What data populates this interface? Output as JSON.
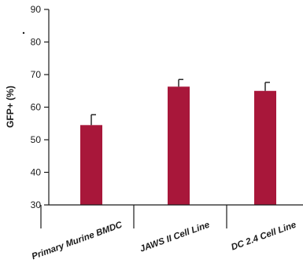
{
  "chart_data": {
    "type": "bar",
    "title": "",
    "ylabel": "GFP+ (%)",
    "xlabel": "",
    "categories": [
      "Primary Murine BMDC",
      "JAWS II Cell Line",
      "DC 2.4 Cell Line"
    ],
    "series": [
      {
        "values": [
          54.5,
          66.3,
          65.0
        ],
        "errors": [
          3.2,
          2.2,
          2.6
        ],
        "color": "#a8173a"
      }
    ],
    "ylim": [
      30,
      90
    ],
    "yticks": [
      30,
      40,
      50,
      60,
      70,
      80,
      90
    ],
    "grid": false,
    "legend": "none"
  }
}
